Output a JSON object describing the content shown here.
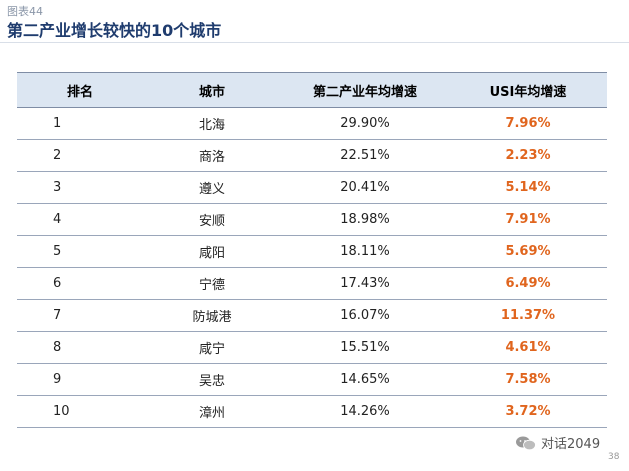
{
  "header": {
    "chart_label": "图表44",
    "title": "第二产业增长较快的10个城市"
  },
  "table": {
    "headers": {
      "rank": "排名",
      "city": "城市",
      "industry_growth": "第二产业年均增速",
      "usi_growth": "USI年均增速"
    },
    "rows": [
      {
        "rank": "1",
        "city": "北海",
        "industry_growth": "29.90%",
        "usi_growth": "7.96%"
      },
      {
        "rank": "2",
        "city": "商洛",
        "industry_growth": "22.51%",
        "usi_growth": "2.23%"
      },
      {
        "rank": "3",
        "city": "遵义",
        "industry_growth": "20.41%",
        "usi_growth": "5.14%"
      },
      {
        "rank": "4",
        "city": "安顺",
        "industry_growth": "18.98%",
        "usi_growth": "7.91%"
      },
      {
        "rank": "5",
        "city": "咸阳",
        "industry_growth": "18.11%",
        "usi_growth": "5.69%"
      },
      {
        "rank": "6",
        "city": "宁德",
        "industry_growth": "17.43%",
        "usi_growth": "6.49%"
      },
      {
        "rank": "7",
        "city": "防城港",
        "industry_growth": "16.07%",
        "usi_growth": "11.37%"
      },
      {
        "rank": "8",
        "city": "咸宁",
        "industry_growth": "15.51%",
        "usi_growth": "4.61%"
      },
      {
        "rank": "9",
        "city": "吴忠",
        "industry_growth": "14.65%",
        "usi_growth": "7.58%"
      },
      {
        "rank": "10",
        "city": "漳州",
        "industry_growth": "14.26%",
        "usi_growth": "3.72%"
      }
    ]
  },
  "watermark": {
    "icon": "wechat-icon",
    "text": "对话2049"
  },
  "footer": {
    "page_number": "38"
  },
  "colors": {
    "title": "#1f3c6e",
    "header_bg": "#dce6f2",
    "usi_value": "#e0651e"
  }
}
